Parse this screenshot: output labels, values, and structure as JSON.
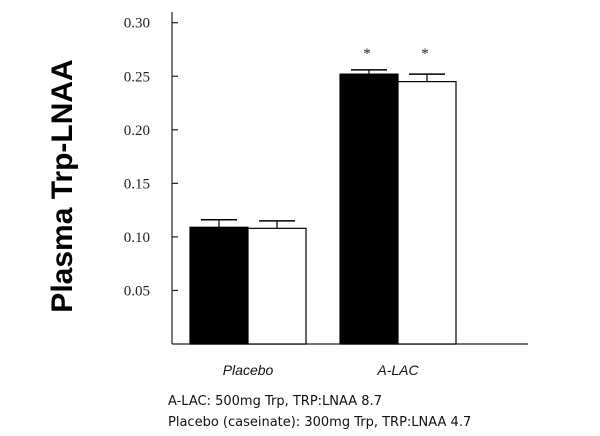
{
  "chart_data": {
    "type": "bar",
    "title": "",
    "xlabel": "",
    "ylabel": "Plasma Trp-LNAA",
    "categories": [
      "Placebo",
      "A-LAC"
    ],
    "series": [
      {
        "color": "#000000",
        "values": [
          0.109,
          0.252
        ],
        "errors": [
          0.007,
          0.004
        ]
      },
      {
        "color": "#ffffff",
        "values": [
          0.108,
          0.245
        ],
        "errors": [
          0.007,
          0.007
        ]
      }
    ],
    "significance": [
      [
        "",
        ""
      ],
      [
        "*",
        "*"
      ]
    ],
    "ylim": [
      0,
      0.31
    ],
    "yticks": [
      0.05,
      0.1,
      0.15,
      0.2,
      0.25,
      0.3
    ],
    "ytick_labels": [
      "0.05",
      "0.10",
      "0.15",
      "0.20",
      "0.25",
      "0.30"
    ],
    "grid": false,
    "notes": [
      "A-LAC: 500mg Trp, TRP:LNAA 8.7",
      "Placebo (caseinate): 300mg Trp, TRP:LNAA 4.7"
    ]
  }
}
